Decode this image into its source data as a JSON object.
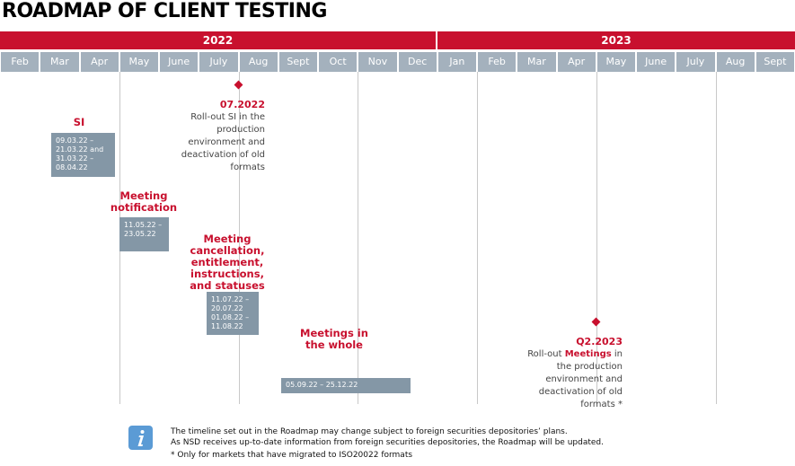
{
  "title": "ROADMAP OF CLIENT TESTING",
  "years": [
    "2022",
    "2023"
  ],
  "months": [
    "Feb",
    "Mar",
    "Apr",
    "May",
    "June",
    "July",
    "Aug",
    "Sept",
    "Oct",
    "Nov",
    "Dec",
    "Jan",
    "Feb",
    "Mar",
    "Apr",
    "May",
    "June",
    "July",
    "Aug",
    "Sept"
  ],
  "phases": [
    {
      "label": "SI",
      "dates": "09.03.22 – 21.03.22 and 31.03.22 – 08.04.22"
    },
    {
      "label": "Meeting notification",
      "dates": "11.05.22 – 23.05.22"
    },
    {
      "label": "Meeting cancellation, entitlement, instructions, and statuses",
      "dates": "11.07.22 – 20.07.22 01.08.22 – 11.08.22"
    },
    {
      "label": "Meetings in the whole",
      "dates": "05.09.22 – 25.12.22"
    }
  ],
  "milestones": [
    {
      "date": "07.2022",
      "pre": "Roll-out SI in the production environment and deactivation of old formats"
    },
    {
      "date": "Q2.2023",
      "pre": "Roll-out",
      "highlight": "Meetings",
      "post": "in the production environment and deactivation of old formats *"
    }
  ],
  "notes": [
    "The timeline set out in the Roadmap may change subject to foreign securities depositories’ plans.",
    "As NSD receives up-to-date information from foreign securities depositories, the Roadmap will be updated.",
    "* Only for markets that have migrated to ISO20022 formats"
  ]
}
